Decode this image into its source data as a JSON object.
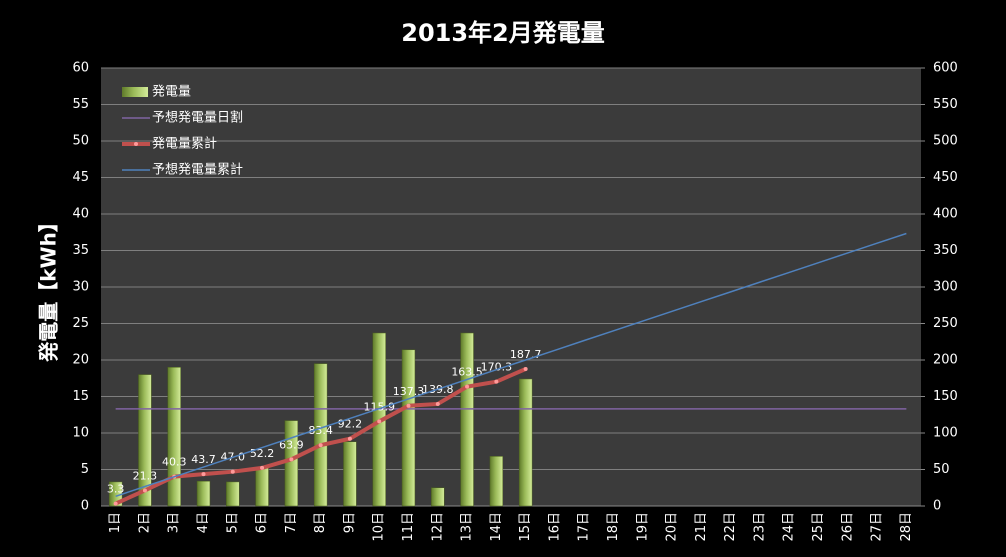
{
  "chart_data": {
    "type": "bar",
    "title": "2013年2月発電量",
    "y_label": "発電量【kWh】",
    "categories": [
      "1日",
      "2日",
      "3日",
      "4日",
      "5日",
      "6日",
      "7日",
      "8日",
      "9日",
      "10日",
      "11日",
      "12日",
      "13日",
      "14日",
      "15日",
      "16日",
      "17日",
      "18日",
      "19日",
      "20日",
      "21日",
      "22日",
      "23日",
      "24日",
      "25日",
      "26日",
      "27日",
      "28日"
    ],
    "ylim": [
      0,
      60
    ],
    "yticks": [
      0,
      5,
      10,
      15,
      20,
      25,
      30,
      35,
      40,
      45,
      50,
      55,
      60
    ],
    "y2lim": [
      0,
      600
    ],
    "y2ticks": [
      0,
      50,
      100,
      150,
      200,
      250,
      300,
      350,
      400,
      450,
      500,
      550,
      600
    ],
    "grid": true,
    "legend": "top-left",
    "series": [
      {
        "name": "発電量",
        "type": "bar",
        "color": "#9bbb59",
        "values": [
          3.3,
          18.0,
          19.0,
          3.4,
          3.3,
          5.2,
          11.7,
          19.5,
          8.8,
          23.7,
          21.4,
          2.5,
          23.7,
          6.8,
          17.4,
          null,
          null,
          null,
          null,
          null,
          null,
          null,
          null,
          null,
          null,
          null,
          null,
          null
        ]
      },
      {
        "name": "予想発電量日割",
        "type": "line",
        "color": "#8064a2",
        "values": [
          13.3,
          13.3,
          13.3,
          13.3,
          13.3,
          13.3,
          13.3,
          13.3,
          13.3,
          13.3,
          13.3,
          13.3,
          13.3,
          13.3,
          13.3,
          13.3,
          13.3,
          13.3,
          13.3,
          13.3,
          13.3,
          13.3,
          13.3,
          13.3,
          13.3,
          13.3,
          13.3,
          13.3
        ]
      },
      {
        "name": "発電量累計",
        "type": "line",
        "color": "#c0504d",
        "axis": "y2",
        "markers": true,
        "values": [
          3.3,
          21.3,
          40.3,
          43.7,
          47.0,
          52.2,
          63.9,
          83.4,
          92.2,
          115.9,
          137.3,
          139.8,
          163.5,
          170.3,
          187.7,
          null,
          null,
          null,
          null,
          null,
          null,
          null,
          null,
          null,
          null,
          null,
          null,
          null
        ],
        "value_labels": [
          "3.3",
          "21.3",
          "40.3",
          "43.7",
          "47.0",
          "52.2",
          "63.9",
          "83.4",
          "92.2",
          "115.9",
          "137.3",
          "139.8",
          "163.5",
          "170.3",
          "187.7",
          null,
          null,
          null,
          null,
          null,
          null,
          null,
          null,
          null,
          null,
          null,
          null,
          null
        ]
      },
      {
        "name": "予想発電量累計",
        "type": "line",
        "color": "#4f81bd",
        "axis": "y2",
        "values": [
          13.3,
          26.7,
          40.0,
          53.3,
          66.7,
          80.0,
          93.3,
          106.7,
          120.0,
          133.3,
          146.7,
          160.0,
          173.3,
          186.7,
          200.0,
          213.3,
          226.7,
          240.0,
          253.3,
          266.7,
          280.0,
          293.3,
          306.7,
          320.0,
          333.3,
          346.7,
          360.0,
          373.3
        ]
      }
    ]
  }
}
